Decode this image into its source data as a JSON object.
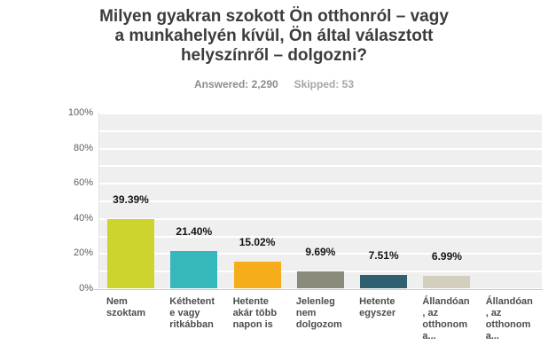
{
  "title": "Milyen gyakran szokott Ön otthonról – vagy\na munkahelyén kívül, Ön által választott\nhelyszínről – dolgozni?",
  "stats": {
    "answered_label": "Answered: 2,290",
    "skipped_label": "Skipped: 53"
  },
  "chart_data": {
    "type": "bar",
    "title": "Milyen gyakran szokott Ön otthonról – vagy a munkahelyén kívül, Ön által választott helyszínről – dolgozni?",
    "answered_text": "Answered: 2,290",
    "skipped_text": "Skipped: 53",
    "categories": [
      "Nem szoktam",
      "Kéthetente vagy ritkábban",
      "Hetente akár több napon is",
      "Jelenleg nem dolgozom",
      "Hetente egyszer",
      "Állandóan, az otthonom a...",
      "Állandóan, az otthonom a..."
    ],
    "category_display_lines": [
      "Nem\nszoktam",
      "Kéthetent\ne vagy\nritkábban",
      "Hetente\nakár több\nnapon is",
      "Jelenleg\nnem\ndolgozom",
      "Hetente\negyszer",
      "Állandóan\n, az\notthonom\na...",
      "Állandóan\n, az\notthonom\na..."
    ],
    "values": [
      39.39,
      21.4,
      15.02,
      9.69,
      7.51,
      6.99,
      null
    ],
    "value_labels": [
      "39.39%",
      "21.40%",
      "15.02%",
      "9.69%",
      "7.51%",
      "6.99%",
      ""
    ],
    "bar_colors": [
      "#ccd42d",
      "#36b7bc",
      "#f6ad1b",
      "#8a8b7b",
      "#30606f",
      "#d2d0bd",
      "#d2d0bd"
    ],
    "xlabel": "",
    "ylabel": "",
    "ylim": [
      0,
      100
    ],
    "ytick_labels": [
      "100%",
      "80%",
      "60%",
      "40%",
      "20%",
      "0%"
    ],
    "ytick_values": [
      100,
      80,
      60,
      40,
      20,
      0
    ],
    "grid": true,
    "grid_interval": 10,
    "legend_position": "none",
    "plot_background": "#efefef",
    "gridline_color": "#ffffff",
    "axis_line_color": "#c8c8c8"
  }
}
